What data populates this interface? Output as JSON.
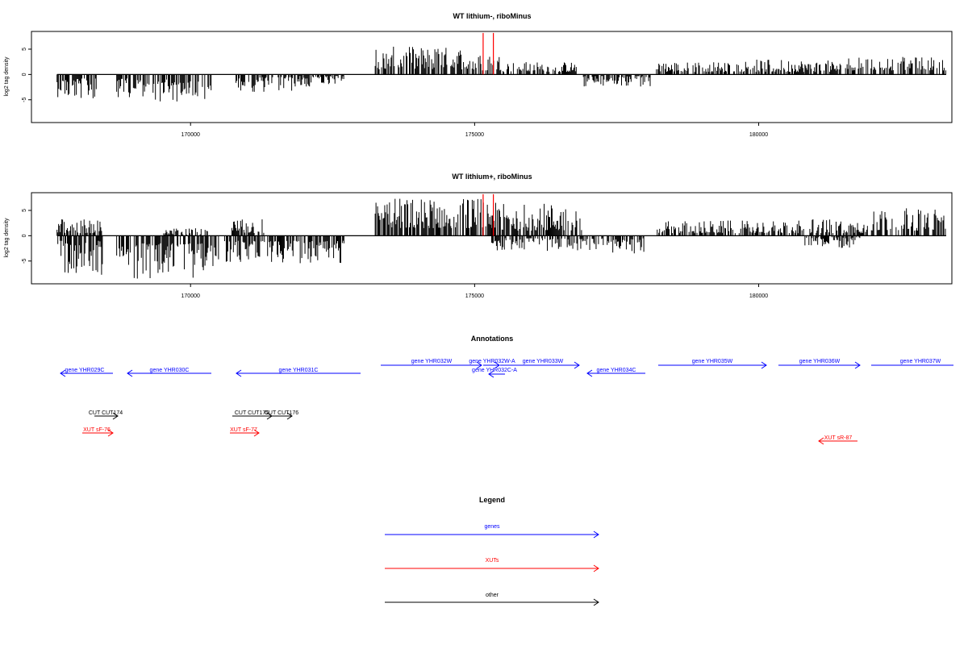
{
  "colors": {
    "axis": "#000000",
    "bars": "#000000",
    "marker": "#ff0000",
    "genes": "#0000ff",
    "xuts": "#ff0000",
    "other": "#000000"
  },
  "chart_data": [
    {
      "type": "bar",
      "title": "WT lithium-, riboMinus",
      "ylabel": "log2 tag density",
      "xlim": [
        167200,
        183400
      ],
      "ylim": [
        -9.5,
        8.5
      ],
      "x_ticks": [
        170000,
        175000,
        180000
      ],
      "y_ticks": [
        5,
        0,
        -5
      ],
      "markers_x": [
        175150,
        175330
      ],
      "segments": [
        {
          "x_start": 167650,
          "x_end": 167850,
          "direction": "down",
          "min": 1.0,
          "max": 4.5
        },
        {
          "x_start": 167850,
          "x_end": 168350,
          "direction": "down",
          "min": 0.8,
          "max": 5.0
        },
        {
          "x_start": 168700,
          "x_end": 169200,
          "direction": "down",
          "min": 0.8,
          "max": 4.5
        },
        {
          "x_start": 169200,
          "x_end": 170400,
          "direction": "down",
          "min": 1.0,
          "max": 5.5
        },
        {
          "x_start": 170800,
          "x_end": 171800,
          "direction": "down",
          "min": 0.5,
          "max": 3.5
        },
        {
          "x_start": 171800,
          "x_end": 172700,
          "direction": "down",
          "min": 0.3,
          "max": 2.5
        },
        {
          "x_start": 173250,
          "x_end": 174900,
          "direction": "up",
          "min": 1.0,
          "max": 5.5
        },
        {
          "x_start": 174900,
          "x_end": 175500,
          "direction": "up",
          "min": 0.8,
          "max": 4.0
        },
        {
          "x_start": 175500,
          "x_end": 176800,
          "direction": "up",
          "min": 0.5,
          "max": 2.5
        },
        {
          "x_start": 176900,
          "x_end": 178100,
          "direction": "down",
          "min": 0.3,
          "max": 2.5
        },
        {
          "x_start": 178200,
          "x_end": 179700,
          "direction": "up",
          "min": 0.5,
          "max": 2.5
        },
        {
          "x_start": 179700,
          "x_end": 180800,
          "direction": "up",
          "min": 0.5,
          "max": 3.0
        },
        {
          "x_start": 180800,
          "x_end": 181500,
          "direction": "up",
          "min": 0.5,
          "max": 2.8
        },
        {
          "x_start": 181500,
          "x_end": 183300,
          "direction": "up",
          "min": 0.8,
          "max": 3.5
        }
      ]
    },
    {
      "type": "bar",
      "title": "WT lithium+, riboMinus",
      "ylabel": "log2 tag density",
      "xlim": [
        167200,
        183400
      ],
      "ylim": [
        -9.5,
        8.5
      ],
      "x_ticks": [
        170000,
        175000,
        180000
      ],
      "y_ticks": [
        5,
        0,
        -5
      ],
      "markers_x": [
        175150,
        175330
      ],
      "segments": [
        {
          "x_start": 167650,
          "x_end": 168450,
          "direction": "up",
          "min": 0.5,
          "max": 3.5
        },
        {
          "x_start": 167650,
          "x_end": 168450,
          "direction": "down",
          "min": 1.0,
          "max": 8.0
        },
        {
          "x_start": 168700,
          "x_end": 170500,
          "direction": "down",
          "min": 1.5,
          "max": 8.5
        },
        {
          "x_start": 169500,
          "x_end": 170300,
          "direction": "up",
          "min": 0.2,
          "max": 1.5
        },
        {
          "x_start": 170600,
          "x_end": 172700,
          "direction": "down",
          "min": 1.0,
          "max": 5.5
        },
        {
          "x_start": 170700,
          "x_end": 171300,
          "direction": "up",
          "min": 0.5,
          "max": 3.5
        },
        {
          "x_start": 173250,
          "x_end": 175300,
          "direction": "up",
          "min": 1.5,
          "max": 7.5
        },
        {
          "x_start": 175300,
          "x_end": 176900,
          "direction": "up",
          "min": 1.0,
          "max": 6.5
        },
        {
          "x_start": 175300,
          "x_end": 176900,
          "direction": "down",
          "min": 0.5,
          "max": 3.0
        },
        {
          "x_start": 176900,
          "x_end": 178000,
          "direction": "down",
          "min": 0.5,
          "max": 3.5
        },
        {
          "x_start": 178200,
          "x_end": 180800,
          "direction": "up",
          "min": 0.5,
          "max": 3.0
        },
        {
          "x_start": 180800,
          "x_end": 181800,
          "direction": "down",
          "min": 0.3,
          "max": 2.5
        },
        {
          "x_start": 180900,
          "x_end": 181900,
          "direction": "up",
          "min": 0.5,
          "max": 3.5
        },
        {
          "x_start": 181900,
          "x_end": 183300,
          "direction": "up",
          "min": 1.0,
          "max": 5.5
        }
      ]
    }
  ],
  "annotations": {
    "title": "Annotations",
    "genes": [
      {
        "label": "gene YHR029C",
        "strand": "-"
      },
      {
        "label": "gene YHR030C",
        "strand": "-"
      },
      {
        "label": "gene YHR031C",
        "strand": "-"
      },
      {
        "label": "gene YHR032W",
        "strand": "+"
      },
      {
        "label": "gene YHR032W-A",
        "strand": "+"
      },
      {
        "label": "gene YHR032C-A",
        "strand": "-"
      },
      {
        "label": "gene YHR033W",
        "strand": "+"
      },
      {
        "label": "gene YHR034C",
        "strand": "-"
      },
      {
        "label": "gene YHR035W",
        "strand": "+"
      },
      {
        "label": "gene YHR036W",
        "strand": "+"
      },
      {
        "label": "gene YHR037W",
        "strand": "+"
      }
    ],
    "others": [
      {
        "label": "CUT CUT174",
        "strand": "+"
      },
      {
        "label": "CUT CUT175",
        "strand": "+"
      },
      {
        "label": "CUT CUT176",
        "strand": "+"
      }
    ],
    "xuts": [
      {
        "label": "XUT sF-76",
        "strand": "+"
      },
      {
        "label": "XUT sF-77",
        "strand": "+"
      },
      {
        "label": "XUT sR-87",
        "strand": "-"
      }
    ]
  },
  "legend": {
    "title": "Legend",
    "items": [
      {
        "label": "genes",
        "color": "#0000ff"
      },
      {
        "label": "XUTs",
        "color": "#ff0000"
      },
      {
        "label": "other",
        "color": "#000000"
      }
    ]
  }
}
